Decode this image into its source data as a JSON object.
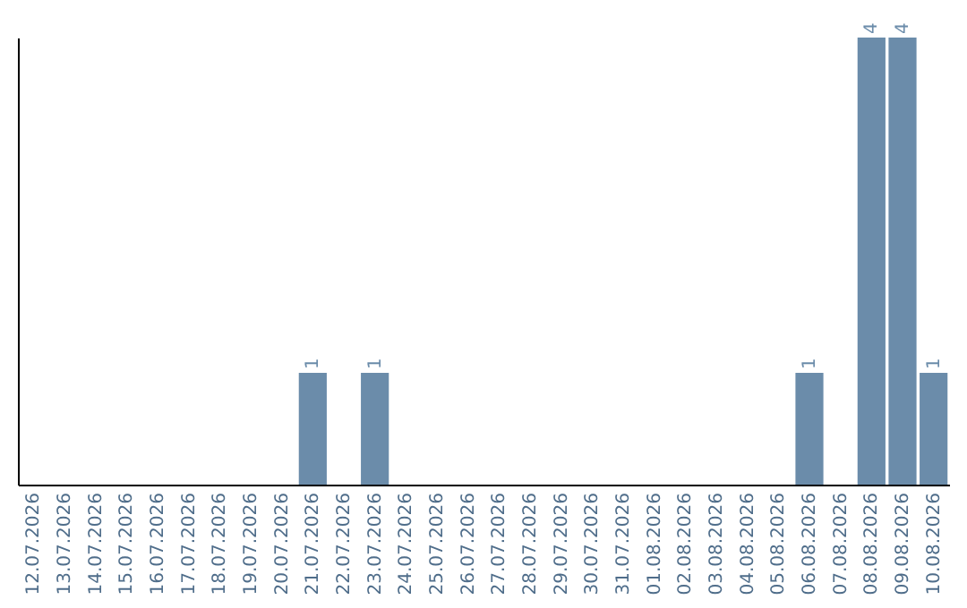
{
  "chart_data": {
    "type": "bar",
    "categories": [
      "12.07.2026",
      "13.07.2026",
      "14.07.2026",
      "15.07.2026",
      "16.07.2026",
      "17.07.2026",
      "18.07.2026",
      "19.07.2026",
      "20.07.2026",
      "21.07.2026",
      "22.07.2026",
      "23.07.2026",
      "24.07.2026",
      "25.07.2026",
      "26.07.2026",
      "27.07.2026",
      "28.07.2026",
      "29.07.2026",
      "30.07.2026",
      "31.07.2026",
      "01.08.2026",
      "02.08.2026",
      "03.08.2026",
      "04.08.2026",
      "05.08.2026",
      "06.08.2026",
      "07.08.2026",
      "08.08.2026",
      "09.08.2026",
      "10.08.2026"
    ],
    "values": [
      0,
      0,
      0,
      0,
      0,
      0,
      0,
      0,
      0,
      1,
      0,
      1,
      0,
      0,
      0,
      0,
      0,
      0,
      0,
      0,
      0,
      0,
      0,
      0,
      0,
      1,
      0,
      4,
      4,
      1
    ],
    "value_labels": [
      null,
      null,
      null,
      null,
      null,
      null,
      null,
      null,
      null,
      "1",
      null,
      "1",
      null,
      null,
      null,
      null,
      null,
      null,
      null,
      null,
      null,
      null,
      null,
      null,
      null,
      "1",
      null,
      "4",
      "4",
      "1"
    ],
    "color": "#6b8caa",
    "tick_labels": "x"
  }
}
